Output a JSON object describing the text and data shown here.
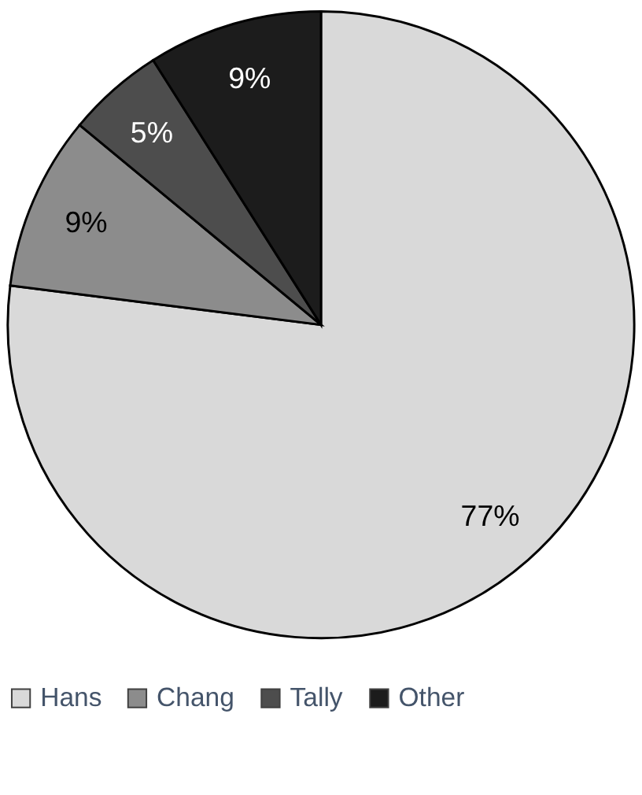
{
  "chart_data": {
    "type": "pie",
    "categories": [
      "Hans",
      "Chang",
      "Tally",
      "Other"
    ],
    "values": [
      77,
      9,
      5,
      9
    ],
    "colors": [
      "#d9d9d9",
      "#8c8c8c",
      "#4d4d4d",
      "#1c1c1c"
    ],
    "value_labels": [
      "77%",
      "9%",
      "5%",
      "9%"
    ],
    "legend": "bottom"
  }
}
